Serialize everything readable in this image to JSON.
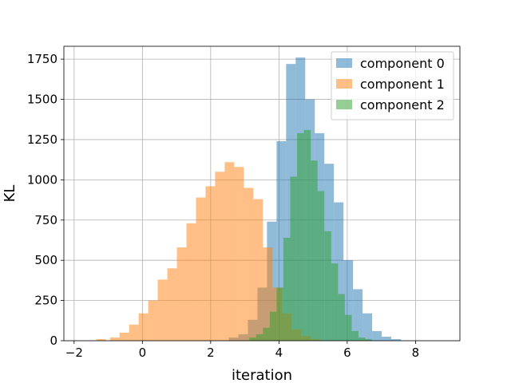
{
  "chart_data": {
    "type": "histogram",
    "title": "",
    "xlabel": "iteration",
    "ylabel": "KL",
    "xlim": [
      -2.3,
      9.3
    ],
    "ylim": [
      0,
      1830
    ],
    "xticks": [
      -2,
      0,
      2,
      4,
      6,
      8
    ],
    "yticks": [
      0,
      250,
      500,
      750,
      1000,
      1250,
      1500,
      1750
    ],
    "grid": true,
    "legend_position": "top-right",
    "series": [
      {
        "name": "component 0",
        "color": "#1f77b4",
        "alpha": 0.5,
        "bin_width": 0.28,
        "bins": [
          [
            2.53,
            20
          ],
          [
            2.81,
            40
          ],
          [
            3.09,
            130
          ],
          [
            3.37,
            330
          ],
          [
            3.65,
            740
          ],
          [
            3.93,
            1240
          ],
          [
            4.21,
            1720
          ],
          [
            4.49,
            1760
          ],
          [
            4.77,
            1500
          ],
          [
            5.05,
            1290
          ],
          [
            5.33,
            1100
          ],
          [
            5.61,
            860
          ],
          [
            5.89,
            500
          ],
          [
            6.17,
            320
          ],
          [
            6.45,
            170
          ],
          [
            6.73,
            60
          ],
          [
            7.01,
            25
          ],
          [
            7.29,
            10
          ]
        ]
      },
      {
        "name": "component 1",
        "color": "#ff7f0e",
        "alpha": 0.5,
        "bin_width": 0.28,
        "bins": [
          [
            -1.35,
            10
          ],
          [
            -0.95,
            20
          ],
          [
            -0.67,
            50
          ],
          [
            -0.39,
            100
          ],
          [
            -0.11,
            170
          ],
          [
            0.17,
            250
          ],
          [
            0.45,
            380
          ],
          [
            0.73,
            450
          ],
          [
            1.01,
            580
          ],
          [
            1.29,
            730
          ],
          [
            1.57,
            890
          ],
          [
            1.85,
            960
          ],
          [
            2.13,
            1050
          ],
          [
            2.41,
            1110
          ],
          [
            2.69,
            1080
          ],
          [
            2.97,
            950
          ],
          [
            3.25,
            880
          ],
          [
            3.53,
            580
          ],
          [
            3.81,
            330
          ],
          [
            4.09,
            170
          ],
          [
            4.37,
            70
          ],
          [
            4.65,
            30
          ],
          [
            4.93,
            10
          ]
        ]
      },
      {
        "name": "component 2",
        "color": "#2ca02c",
        "alpha": 0.5,
        "bin_width": 0.2,
        "bins": [
          [
            3.13,
            20
          ],
          [
            3.33,
            40
          ],
          [
            3.53,
            80
          ],
          [
            3.73,
            180
          ],
          [
            3.93,
            330
          ],
          [
            4.13,
            640
          ],
          [
            4.33,
            1020
          ],
          [
            4.53,
            1290
          ],
          [
            4.73,
            1310
          ],
          [
            4.93,
            1120
          ],
          [
            5.13,
            930
          ],
          [
            5.33,
            680
          ],
          [
            5.53,
            480
          ],
          [
            5.73,
            290
          ],
          [
            5.93,
            160
          ],
          [
            6.13,
            60
          ],
          [
            6.33,
            20
          ],
          [
            6.53,
            10
          ]
        ]
      }
    ]
  }
}
